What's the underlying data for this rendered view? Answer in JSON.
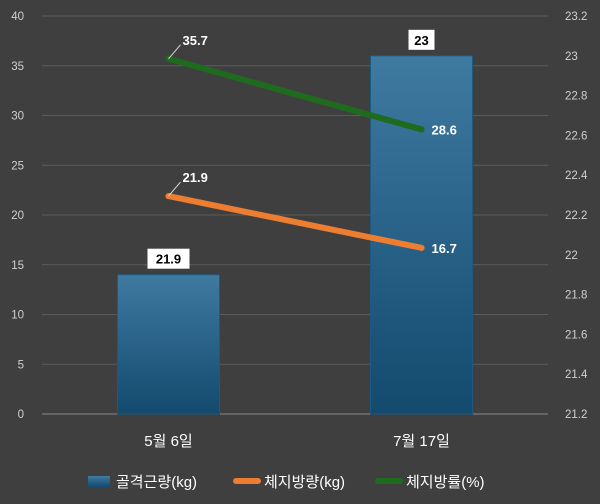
{
  "chart_data": {
    "type": "bar",
    "categories": [
      "5월 6일",
      "7월 17일"
    ],
    "y_left": {
      "min": 0,
      "max": 40,
      "step": 5,
      "ticks": [
        "0",
        "5",
        "10",
        "15",
        "20",
        "25",
        "30",
        "35",
        "40"
      ]
    },
    "y_right": {
      "min": 21.2,
      "max": 23.2,
      "step": 0.2,
      "ticks": [
        "21.2",
        "21.4",
        "21.6",
        "21.8",
        "22",
        "22.2",
        "22.4",
        "22.6",
        "22.8",
        "23",
        "23.2"
      ]
    },
    "series": [
      {
        "name": "골격근량(kg)",
        "kind": "bar",
        "axis": "right",
        "values": [
          21.9,
          23
        ],
        "labels": [
          "21.9",
          "23"
        ],
        "color": "#2a6b94"
      },
      {
        "name": "체지방량(kg)",
        "kind": "line",
        "axis": "left",
        "values": [
          21.9,
          16.7
        ],
        "labels": [
          "21.9",
          "16.7"
        ],
        "color": "#ed7d31"
      },
      {
        "name": "체지방률(%)",
        "kind": "line",
        "axis": "left",
        "values": [
          35.7,
          28.6
        ],
        "labels": [
          "35.7",
          "28.6"
        ],
        "color": "#1e6b1e"
      }
    ],
    "legend_position": "bottom",
    "grid": true
  }
}
